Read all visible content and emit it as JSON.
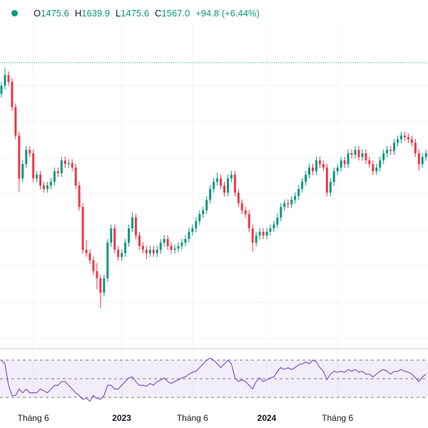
{
  "header": {
    "items": [
      {
        "label": "O",
        "value": "1475.6"
      },
      {
        "label": "H",
        "value": "1639.9"
      },
      {
        "label": "L",
        "value": "1475.6"
      },
      {
        "label": "C",
        "value": "1567.0"
      }
    ],
    "change": "+94.8 (+6.44%)"
  },
  "chart_data": {
    "type": "candlestick",
    "up_color": "#089981",
    "down_color": "#f23645",
    "ylim": [
      789,
      1558
    ],
    "price_line": 1543,
    "categories": [
      null,
      null,
      null,
      null,
      null,
      null,
      null,
      null,
      null,
      "Tháng 6",
      null,
      null,
      null,
      null,
      null,
      null,
      null,
      null,
      null,
      null,
      null,
      null,
      null,
      null,
      null,
      null,
      null,
      null,
      null,
      null,
      null,
      null,
      null,
      null,
      "2023",
      null,
      null,
      null,
      null,
      null,
      null,
      null,
      null,
      null,
      null,
      null,
      null,
      null,
      null,
      null,
      null,
      null,
      null,
      null,
      "Tháng 6",
      null,
      null,
      null,
      null,
      null,
      null,
      null,
      null,
      null,
      null,
      null,
      null,
      null,
      null,
      null,
      null,
      null,
      null,
      null,
      null,
      "2024",
      null,
      null,
      null,
      null,
      null,
      null,
      null,
      null,
      null,
      null,
      null,
      null,
      null,
      null,
      null,
      null,
      null,
      null,
      null,
      "Tháng 6",
      null,
      null,
      null,
      null,
      null,
      null,
      null,
      null,
      null,
      null,
      null,
      null,
      null,
      null,
      null,
      null,
      null,
      null,
      null,
      null,
      null
    ],
    "ohlc": [
      [
        1460,
        1492,
        1450,
        1482
      ],
      [
        1482,
        1530,
        1472,
        1510
      ],
      [
        1510,
        1520,
        1482,
        1492
      ],
      [
        1492,
        1502,
        1415,
        1425
      ],
      [
        1425,
        1435,
        1339,
        1349
      ],
      [
        1349,
        1359,
        1200,
        1235
      ],
      [
        1235,
        1283,
        1225,
        1273
      ],
      [
        1273,
        1321,
        1263,
        1311
      ],
      [
        1311,
        1321,
        1292,
        1302
      ],
      [
        1302,
        1312,
        1225,
        1235
      ],
      [
        1235,
        1255,
        1225,
        1245
      ],
      [
        1245,
        1255,
        1206,
        1216
      ],
      [
        1216,
        1226,
        1197,
        1207
      ],
      [
        1207,
        1226,
        1197,
        1216
      ],
      [
        1216,
        1236,
        1206,
        1226
      ],
      [
        1226,
        1264,
        1216,
        1254
      ],
      [
        1254,
        1264,
        1239,
        1249
      ],
      [
        1249,
        1293,
        1239,
        1283
      ],
      [
        1283,
        1293,
        1263,
        1273
      ],
      [
        1273,
        1286,
        1263,
        1276
      ],
      [
        1276,
        1286,
        1254,
        1264
      ],
      [
        1264,
        1274,
        1206,
        1216
      ],
      [
        1216,
        1226,
        1149,
        1159
      ],
      [
        1159,
        1169,
        1035,
        1045
      ],
      [
        1045,
        1070,
        1026,
        1036
      ],
      [
        1036,
        1046,
        1007,
        1017
      ],
      [
        1017,
        1027,
        978,
        988
      ],
      [
        988,
        1010,
        940,
        969
      ],
      [
        969,
        979,
        890,
        931
      ],
      [
        931,
        979,
        921,
        969
      ],
      [
        969,
        1074,
        959,
        1064
      ],
      [
        1064,
        1112,
        1054,
        1102
      ],
      [
        1102,
        1112,
        1035,
        1045
      ],
      [
        1045,
        1055,
        1016,
        1026
      ],
      [
        1026,
        1046,
        1016,
        1036
      ],
      [
        1036,
        1074,
        1026,
        1064
      ],
      [
        1064,
        1112,
        1054,
        1102
      ],
      [
        1102,
        1145,
        1092,
        1131
      ],
      [
        1131,
        1141,
        1073,
        1083
      ],
      [
        1083,
        1093,
        1045,
        1055
      ],
      [
        1055,
        1065,
        1035,
        1045
      ],
      [
        1045,
        1055,
        1020,
        1036
      ],
      [
        1036,
        1055,
        1026,
        1045
      ],
      [
        1045,
        1055,
        1026,
        1036
      ],
      [
        1036,
        1055,
        1026,
        1045
      ],
      [
        1045,
        1074,
        1035,
        1064
      ],
      [
        1064,
        1084,
        1054,
        1074
      ],
      [
        1074,
        1084,
        1045,
        1055
      ],
      [
        1055,
        1065,
        1035,
        1045
      ],
      [
        1045,
        1058,
        1035,
        1048
      ],
      [
        1048,
        1065,
        1038,
        1055
      ],
      [
        1055,
        1074,
        1045,
        1064
      ],
      [
        1064,
        1084,
        1054,
        1074
      ],
      [
        1074,
        1103,
        1064,
        1093
      ],
      [
        1093,
        1112,
        1083,
        1102
      ],
      [
        1102,
        1131,
        1092,
        1121
      ],
      [
        1121,
        1150,
        1111,
        1140
      ],
      [
        1140,
        1160,
        1130,
        1150
      ],
      [
        1150,
        1188,
        1140,
        1178
      ],
      [
        1178,
        1217,
        1168,
        1207
      ],
      [
        1207,
        1236,
        1197,
        1226
      ],
      [
        1226,
        1250,
        1216,
        1235
      ],
      [
        1235,
        1245,
        1206,
        1216
      ],
      [
        1216,
        1226,
        1187,
        1197
      ],
      [
        1197,
        1245,
        1187,
        1235
      ],
      [
        1235,
        1255,
        1225,
        1245
      ],
      [
        1245,
        1255,
        1187,
        1197
      ],
      [
        1197,
        1207,
        1159,
        1169
      ],
      [
        1169,
        1179,
        1140,
        1150
      ],
      [
        1150,
        1160,
        1130,
        1140
      ],
      [
        1140,
        1150,
        1092,
        1102
      ],
      [
        1102,
        1112,
        1040,
        1064
      ],
      [
        1064,
        1093,
        1054,
        1083
      ],
      [
        1083,
        1103,
        1073,
        1093
      ],
      [
        1093,
        1103,
        1073,
        1083
      ],
      [
        1083,
        1103,
        1073,
        1093
      ],
      [
        1093,
        1112,
        1083,
        1102
      ],
      [
        1102,
        1122,
        1092,
        1112
      ],
      [
        1112,
        1141,
        1102,
        1131
      ],
      [
        1131,
        1169,
        1121,
        1159
      ],
      [
        1159,
        1179,
        1149,
        1169
      ],
      [
        1169,
        1179,
        1156,
        1166
      ],
      [
        1166,
        1188,
        1156,
        1178
      ],
      [
        1178,
        1198,
        1168,
        1188
      ],
      [
        1188,
        1217,
        1178,
        1207
      ],
      [
        1207,
        1236,
        1197,
        1226
      ],
      [
        1226,
        1255,
        1216,
        1245
      ],
      [
        1245,
        1274,
        1235,
        1264
      ],
      [
        1264,
        1274,
        1244,
        1254
      ],
      [
        1254,
        1293,
        1244,
        1283
      ],
      [
        1283,
        1293,
        1263,
        1273
      ],
      [
        1273,
        1283,
        1254,
        1264
      ],
      [
        1264,
        1274,
        1187,
        1197
      ],
      [
        1197,
        1236,
        1187,
        1226
      ],
      [
        1226,
        1264,
        1216,
        1254
      ],
      [
        1254,
        1274,
        1244,
        1264
      ],
      [
        1264,
        1293,
        1254,
        1283
      ],
      [
        1283,
        1293,
        1263,
        1273
      ],
      [
        1273,
        1312,
        1263,
        1302
      ],
      [
        1302,
        1312,
        1288,
        1298
      ],
      [
        1298,
        1321,
        1288,
        1311
      ],
      [
        1311,
        1321,
        1282,
        1292
      ],
      [
        1292,
        1312,
        1282,
        1302
      ],
      [
        1302,
        1312,
        1273,
        1283
      ],
      [
        1283,
        1293,
        1263,
        1273
      ],
      [
        1273,
        1283,
        1244,
        1254
      ],
      [
        1254,
        1274,
        1244,
        1264
      ],
      [
        1264,
        1293,
        1254,
        1283
      ],
      [
        1283,
        1312,
        1273,
        1302
      ],
      [
        1302,
        1321,
        1292,
        1311
      ],
      [
        1311,
        1321,
        1298,
        1308
      ],
      [
        1308,
        1340,
        1298,
        1330
      ],
      [
        1330,
        1349,
        1320,
        1339
      ],
      [
        1339,
        1359,
        1329,
        1349
      ],
      [
        1349,
        1359,
        1335,
        1345
      ],
      [
        1345,
        1355,
        1329,
        1339
      ],
      [
        1339,
        1349,
        1320,
        1330
      ],
      [
        1330,
        1340,
        1292,
        1302
      ],
      [
        1302,
        1312,
        1255,
        1273
      ],
      [
        1273,
        1302,
        1263,
        1292
      ],
      [
        1292,
        1312,
        1282,
        1302
      ]
    ],
    "rsi": {
      "color": "#7e57c2",
      "ylim": [
        24,
        76
      ],
      "levels": [
        70,
        50,
        30
      ],
      "values": [
        70,
        66,
        43,
        32,
        32,
        39,
        35,
        39,
        35,
        35,
        35,
        39,
        37,
        35,
        39,
        43,
        43,
        47,
        47,
        43,
        39,
        35,
        32,
        28,
        29,
        26,
        32,
        29,
        28,
        32,
        43,
        43,
        39,
        39,
        43,
        47,
        51,
        52,
        47,
        43,
        43,
        42,
        45,
        43,
        47,
        49,
        51,
        47,
        45,
        47,
        49,
        51,
        52,
        55,
        57,
        58,
        62,
        66,
        70,
        72,
        70,
        66,
        62,
        66,
        70,
        66,
        51,
        47,
        49,
        47,
        43,
        39,
        47,
        51,
        47,
        49,
        51,
        52,
        58,
        62,
        60,
        62,
        60,
        62,
        65,
        66,
        68,
        66,
        70,
        68,
        62,
        58,
        49,
        55,
        58,
        57,
        58,
        57,
        60,
        58,
        60,
        57,
        58,
        55,
        55,
        52,
        55,
        58,
        60,
        58,
        55,
        58,
        58,
        60,
        58,
        57,
        55,
        51,
        47,
        52,
        55
      ]
    }
  }
}
